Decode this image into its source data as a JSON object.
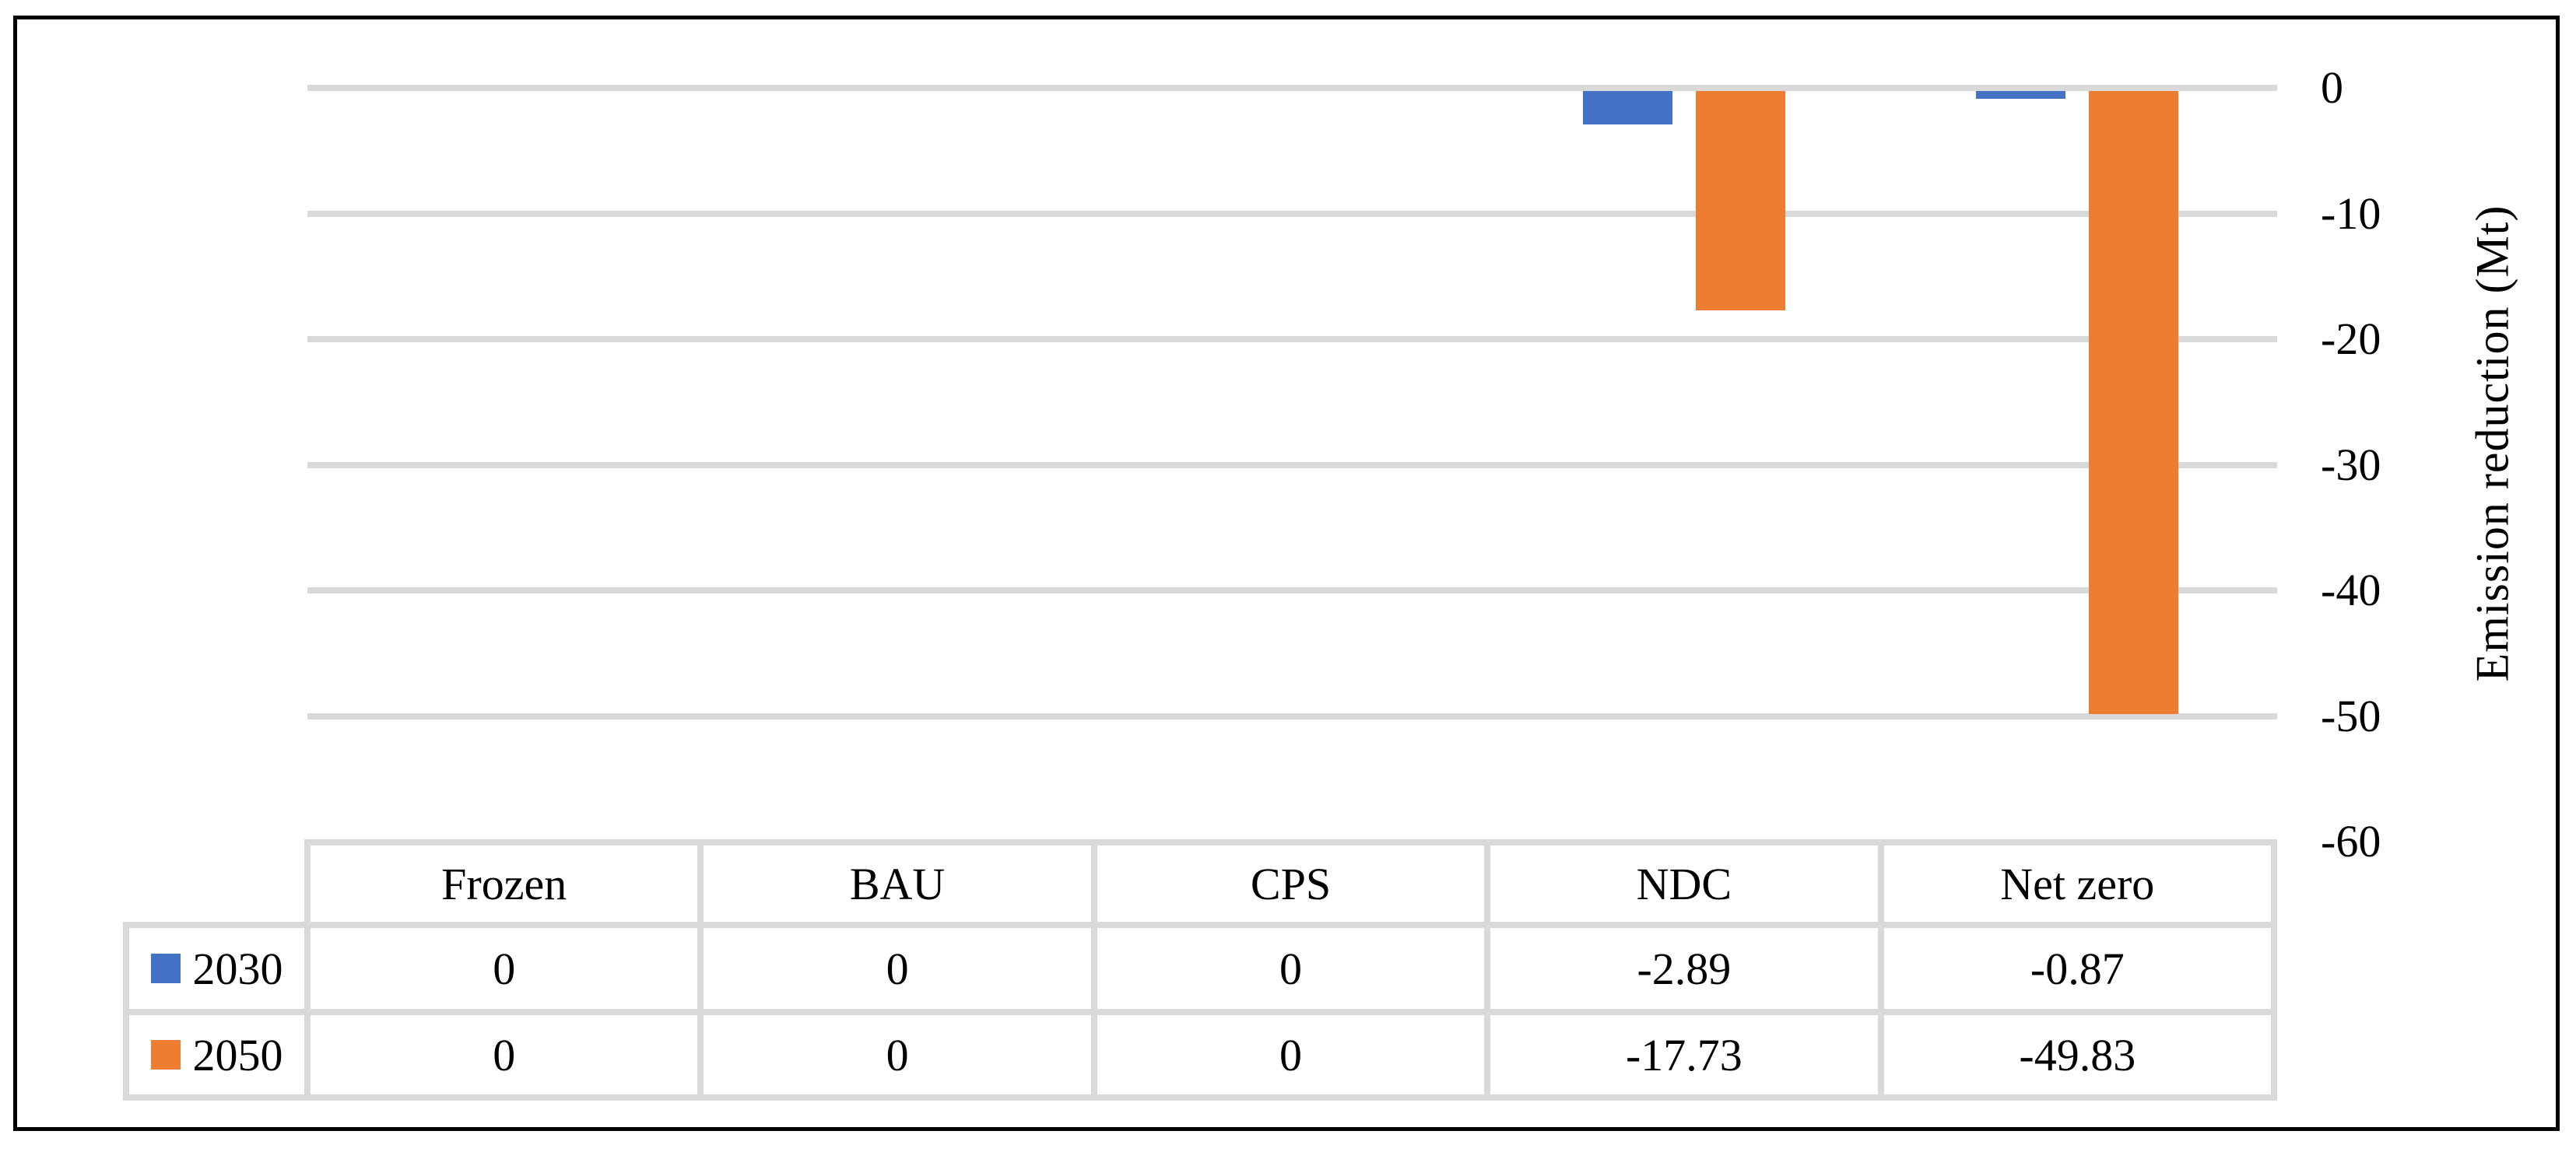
{
  "chart_data": {
    "type": "bar",
    "orientation": "vertical",
    "title": "",
    "ylabel": "Emission reduction (Mt)",
    "categories": [
      "Frozen",
      "BAU",
      "CPS",
      "NDC",
      "Net zero"
    ],
    "series": [
      {
        "name": "2030",
        "color": "#4472C4",
        "values": [
          0,
          0,
          0,
          -2.89,
          -0.87
        ]
      },
      {
        "name": "2050",
        "color": "#ED7D31",
        "values": [
          0,
          0,
          0,
          -17.73,
          -49.83
        ]
      }
    ],
    "ylim": [
      -60,
      0
    ],
    "yticks": [
      0,
      -10,
      -20,
      -30,
      -40,
      -50,
      -60
    ],
    "grid": true,
    "gridline_color": "#D9D9D9",
    "legend_position": "data-table-row-headers",
    "data_table": true,
    "table_border_color": "#D9D9D9",
    "figure_border_color": "#000000"
  }
}
